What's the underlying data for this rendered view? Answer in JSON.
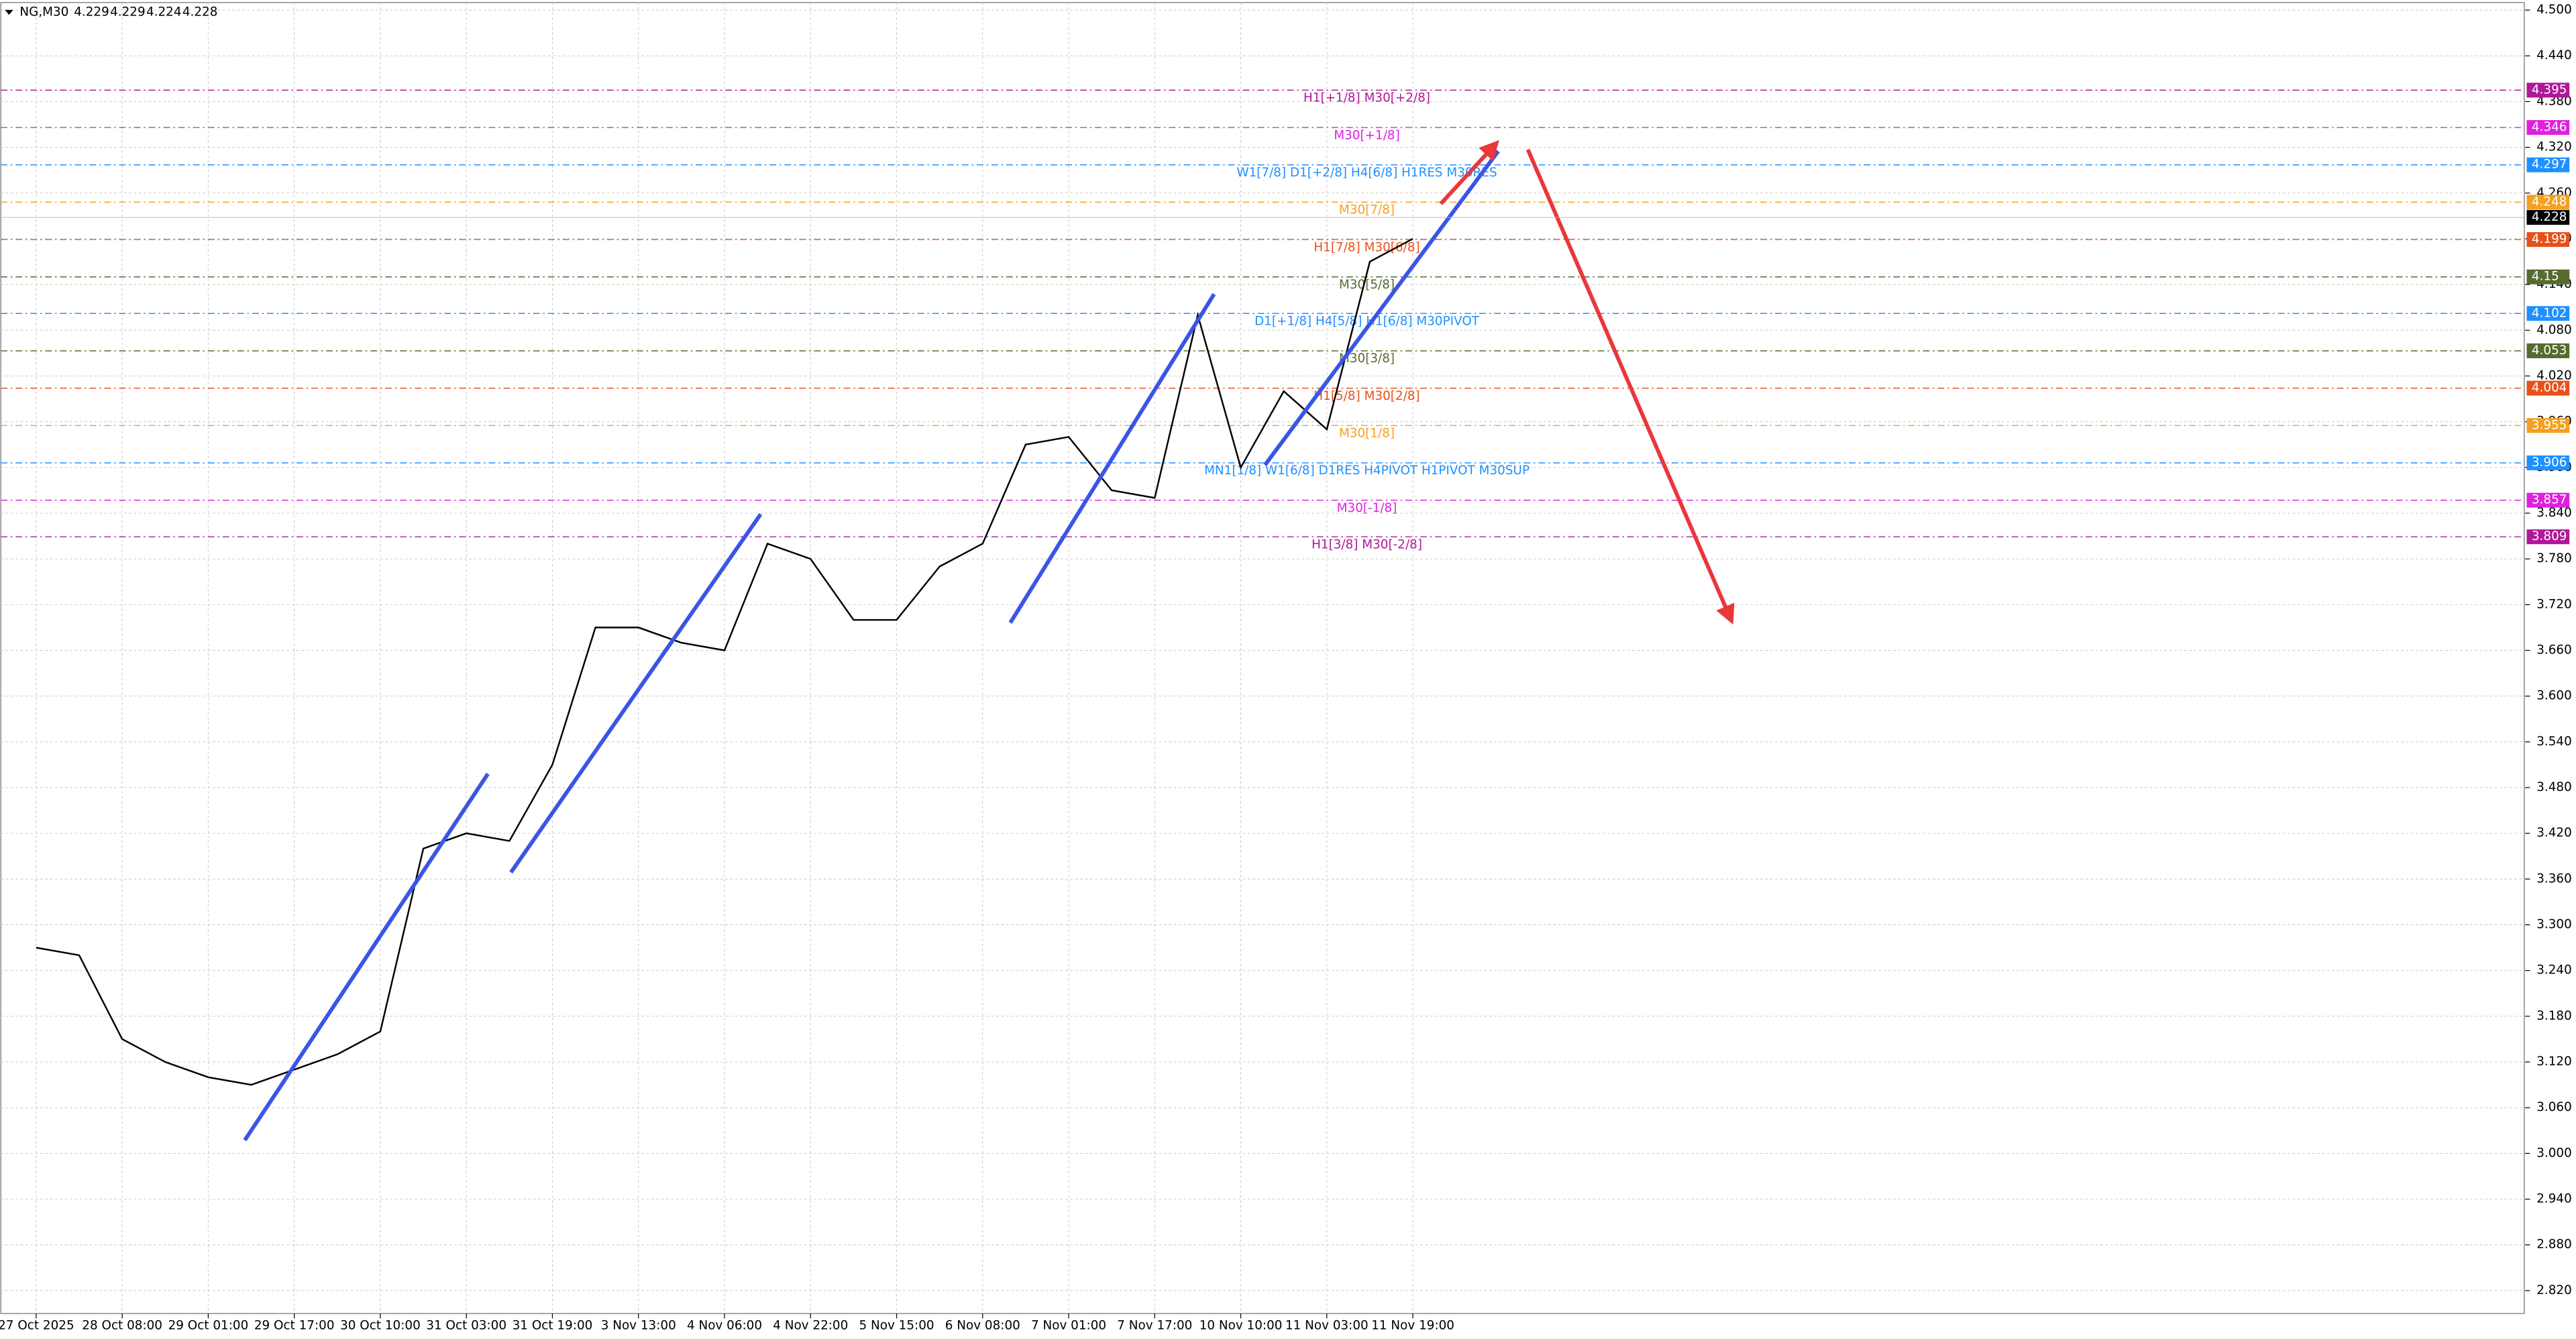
{
  "chart_data": {
    "type": "line",
    "symbol": "NG,M30",
    "ohlc": [
      4.229,
      4.229,
      4.224,
      4.228
    ],
    "categories": [
      "27 Oct 2025",
      null,
      "28 Oct 08:00",
      null,
      "29 Oct 01:00",
      null,
      "29 Oct 17:00",
      null,
      "30 Oct 10:00",
      null,
      "31 Oct 03:00",
      null,
      "31 Oct 19:00",
      null,
      "3 Nov 13:00",
      null,
      "4 Nov 06:00",
      null,
      "4 Nov 22:00",
      null,
      "5 Nov 15:00",
      null,
      "6 Nov 08:00",
      null,
      "7 Nov 01:00",
      null,
      "7 Nov 17:00",
      null,
      "10 Nov 10:00",
      null,
      "11 Nov 03:00",
      null,
      "11 Nov 19:00"
    ],
    "values": [
      3.27,
      3.26,
      3.15,
      3.12,
      3.1,
      3.09,
      3.11,
      3.13,
      3.16,
      3.4,
      3.42,
      3.41,
      3.51,
      3.69,
      3.69,
      3.67,
      3.66,
      3.8,
      3.78,
      3.7,
      3.7,
      3.77,
      3.8,
      3.93,
      3.94,
      3.87,
      3.86,
      4.1,
      3.9,
      4.0,
      3.95,
      4.17,
      4.2
    ],
    "color": "#000000",
    "ylim": [
      2.79,
      4.51
    ],
    "yticks": [
      {
        "value": 2.82,
        "label": "2.820"
      },
      {
        "value": 2.88,
        "label": "2.880"
      },
      {
        "value": 2.94,
        "label": "2.940"
      },
      {
        "value": 3.0,
        "label": "3.000"
      },
      {
        "value": 3.06,
        "label": "3.060"
      },
      {
        "value": 3.12,
        "label": "3.120"
      },
      {
        "value": 3.18,
        "label": "3.180"
      },
      {
        "value": 3.24,
        "label": "3.240"
      },
      {
        "value": 3.3,
        "label": "3.300"
      },
      {
        "value": 3.36,
        "label": "3.360"
      },
      {
        "value": 3.42,
        "label": "3.420"
      },
      {
        "value": 3.48,
        "label": "3.480"
      },
      {
        "value": 3.54,
        "label": "3.540"
      },
      {
        "value": 3.6,
        "label": "3.600"
      },
      {
        "value": 3.66,
        "label": "3.660"
      },
      {
        "value": 3.72,
        "label": "3.720"
      },
      {
        "value": 3.78,
        "label": "3.780"
      },
      {
        "value": 3.84,
        "label": "3.840"
      },
      {
        "value": 3.9,
        "label": "3.900"
      },
      {
        "value": 3.96,
        "label": "3.960"
      },
      {
        "value": 4.02,
        "label": "4.020"
      },
      {
        "value": 4.08,
        "label": "4.080"
      },
      {
        "value": 4.14,
        "label": "4.140"
      },
      {
        "value": 4.2,
        "label": "4.200"
      },
      {
        "value": 4.26,
        "label": "4.260"
      },
      {
        "value": 4.32,
        "label": "4.320"
      },
      {
        "value": 4.38,
        "label": "4.380"
      },
      {
        "value": 4.44,
        "label": "4.440"
      },
      {
        "value": 4.5,
        "label": "4.500"
      }
    ],
    "grid": true,
    "levels": [
      {
        "value": 4.395,
        "label": "H1[+1/8] M30[+2/8]",
        "color": "#b0179a"
      },
      {
        "value": 4.346,
        "label": "M30[+1/8]",
        "color": "#e020e0"
      },
      {
        "value": 4.297,
        "label": "W1[7/8] D1[+2/8] H4[6/8] H1RES M30RES",
        "color": "#1e90ff"
      },
      {
        "value": 4.248,
        "label": "M30[7/8]",
        "color": "#f4a020"
      },
      {
        "value": 4.199,
        "label": "H1[7/8] M30[6/8]",
        "color": "#e8501a"
      },
      {
        "value": 4.15,
        "label": "M30[5/8]",
        "color": "#556b2f"
      },
      {
        "value": 4.102,
        "label": "D1[+1/8] H4[5/8] H1[6/8] M30PIVOT",
        "color": "#1e90ff"
      },
      {
        "value": 4.053,
        "label": "M30[3/8]",
        "color": "#556b2f"
      },
      {
        "value": 4.004,
        "label": "H1[5/8] M30[2/8]",
        "color": "#e8501a"
      },
      {
        "value": 3.955,
        "label": "M30[1/8]",
        "color": "#f4a020"
      },
      {
        "value": 3.906,
        "label": "MN1[1/8] W1[6/8] D1RES H4PIVOT H1PIVOT M30SUP",
        "color": "#1e90ff"
      },
      {
        "value": 3.857,
        "label": "M30[-1/8]",
        "color": "#e020e0"
      },
      {
        "value": 3.809,
        "label": "H1[3/8] M30[-2/8]",
        "color": "#b0179a"
      }
    ]
  }
}
